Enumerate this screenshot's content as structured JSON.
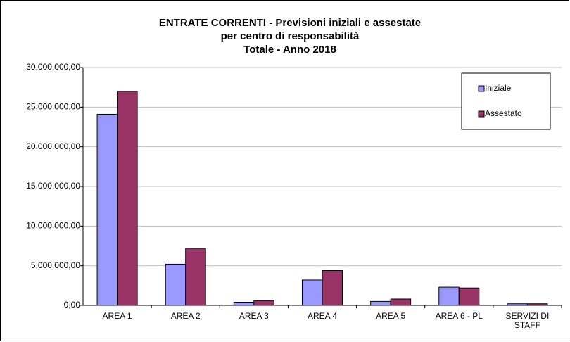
{
  "chart_data": {
    "type": "bar",
    "title": [
      "ENTRATE CORRENTI - Previsioni iniziali e assestate",
      "per centro di responsabilità",
      "Totale - Anno 2018"
    ],
    "categories": [
      "AREA 1",
      "AREA 2",
      "AREA 3",
      "AREA 4",
      "AREA 5",
      "AREA 6 - PL",
      "SERVIZI DI STAFF"
    ],
    "series": [
      {
        "name": "Iniziale",
        "color": "#9999ff",
        "values": [
          24100000,
          5200000,
          400000,
          3200000,
          500000,
          2300000,
          200000
        ]
      },
      {
        "name": "Assestato",
        "color": "#993366",
        "values": [
          27000000,
          7200000,
          600000,
          4400000,
          800000,
          2200000,
          200000
        ]
      }
    ],
    "ylim": [
      0,
      30000000
    ],
    "yticks": [
      {
        "value": 0,
        "label": "0,00"
      },
      {
        "value": 5000000,
        "label": "5.000.000,00"
      },
      {
        "value": 10000000,
        "label": "10.000.000,00"
      },
      {
        "value": 15000000,
        "label": "15.000.000,00"
      },
      {
        "value": 20000000,
        "label": "20.000.000,00"
      },
      {
        "value": 25000000,
        "label": "25.000.000,00"
      },
      {
        "value": 30000000,
        "label": "30.000.000,00"
      }
    ],
    "grid": true,
    "legend": "top-right"
  }
}
